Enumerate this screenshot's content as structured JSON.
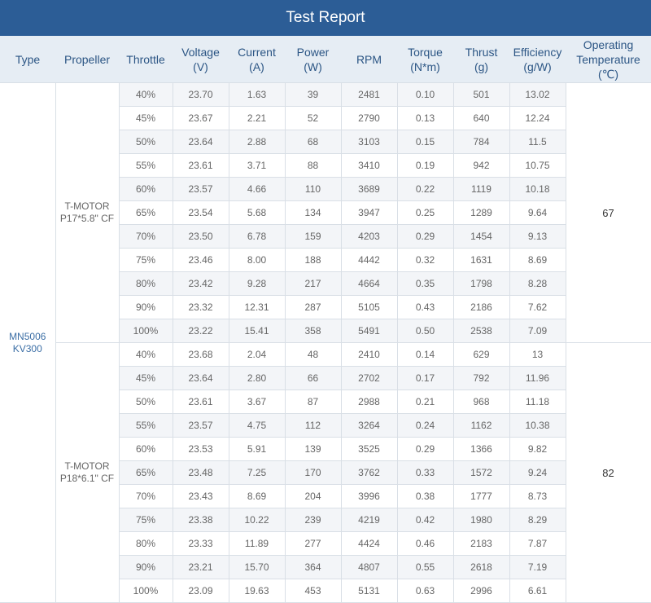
{
  "report": {
    "title": "Test Report"
  },
  "headers": [
    [
      "Type"
    ],
    [
      "Propeller"
    ],
    [
      "Throttle"
    ],
    [
      "Voltage",
      "(V)"
    ],
    [
      "Current",
      "(A)"
    ],
    [
      "Power",
      "(W)"
    ],
    [
      "RPM"
    ],
    [
      "Torque",
      "(N*m)"
    ],
    [
      "Thrust",
      "(g)"
    ],
    [
      "Efficiency",
      "(g/W)"
    ],
    [
      "Operating",
      "Temperature",
      "(℃)"
    ]
  ],
  "motor": {
    "type_lines": [
      "MN5006",
      "KV300"
    ]
  },
  "groups": [
    {
      "propeller_lines": [
        "T-MOTOR",
        "P17*5.8\" CF"
      ],
      "temperature": "67",
      "rows": [
        [
          "40%",
          "23.70",
          "1.63",
          "39",
          "2481",
          "0.10",
          "501",
          "13.02"
        ],
        [
          "45%",
          "23.67",
          "2.21",
          "52",
          "2790",
          "0.13",
          "640",
          "12.24"
        ],
        [
          "50%",
          "23.64",
          "2.88",
          "68",
          "3103",
          "0.15",
          "784",
          "11.5"
        ],
        [
          "55%",
          "23.61",
          "3.71",
          "88",
          "3410",
          "0.19",
          "942",
          "10.75"
        ],
        [
          "60%",
          "23.57",
          "4.66",
          "110",
          "3689",
          "0.22",
          "1119",
          "10.18"
        ],
        [
          "65%",
          "23.54",
          "5.68",
          "134",
          "3947",
          "0.25",
          "1289",
          "9.64"
        ],
        [
          "70%",
          "23.50",
          "6.78",
          "159",
          "4203",
          "0.29",
          "1454",
          "9.13"
        ],
        [
          "75%",
          "23.46",
          "8.00",
          "188",
          "4442",
          "0.32",
          "1631",
          "8.69"
        ],
        [
          "80%",
          "23.42",
          "9.28",
          "217",
          "4664",
          "0.35",
          "1798",
          "8.28"
        ],
        [
          "90%",
          "23.32",
          "12.31",
          "287",
          "5105",
          "0.43",
          "2186",
          "7.62"
        ],
        [
          "100%",
          "23.22",
          "15.41",
          "358",
          "5491",
          "0.50",
          "2538",
          "7.09"
        ]
      ]
    },
    {
      "propeller_lines": [
        "T-MOTOR",
        "P18*6.1\" CF"
      ],
      "temperature": "82",
      "rows": [
        [
          "40%",
          "23.68",
          "2.04",
          "48",
          "2410",
          "0.14",
          "629",
          "13"
        ],
        [
          "45%",
          "23.64",
          "2.80",
          "66",
          "2702",
          "0.17",
          "792",
          "11.96"
        ],
        [
          "50%",
          "23.61",
          "3.67",
          "87",
          "2988",
          "0.21",
          "968",
          "11.18"
        ],
        [
          "55%",
          "23.57",
          "4.75",
          "112",
          "3264",
          "0.24",
          "1162",
          "10.38"
        ],
        [
          "60%",
          "23.53",
          "5.91",
          "139",
          "3525",
          "0.29",
          "1366",
          "9.82"
        ],
        [
          "65%",
          "23.48",
          "7.25",
          "170",
          "3762",
          "0.33",
          "1572",
          "9.24"
        ],
        [
          "70%",
          "23.43",
          "8.69",
          "204",
          "3996",
          "0.38",
          "1777",
          "8.73"
        ],
        [
          "75%",
          "23.38",
          "10.22",
          "239",
          "4219",
          "0.42",
          "1980",
          "8.29"
        ],
        [
          "80%",
          "23.33",
          "11.89",
          "277",
          "4424",
          "0.46",
          "2183",
          "7.87"
        ],
        [
          "90%",
          "23.21",
          "15.70",
          "364",
          "4807",
          "0.55",
          "2618",
          "7.19"
        ],
        [
          "100%",
          "23.09",
          "19.63",
          "453",
          "5131",
          "0.63",
          "2996",
          "6.61"
        ]
      ]
    }
  ]
}
